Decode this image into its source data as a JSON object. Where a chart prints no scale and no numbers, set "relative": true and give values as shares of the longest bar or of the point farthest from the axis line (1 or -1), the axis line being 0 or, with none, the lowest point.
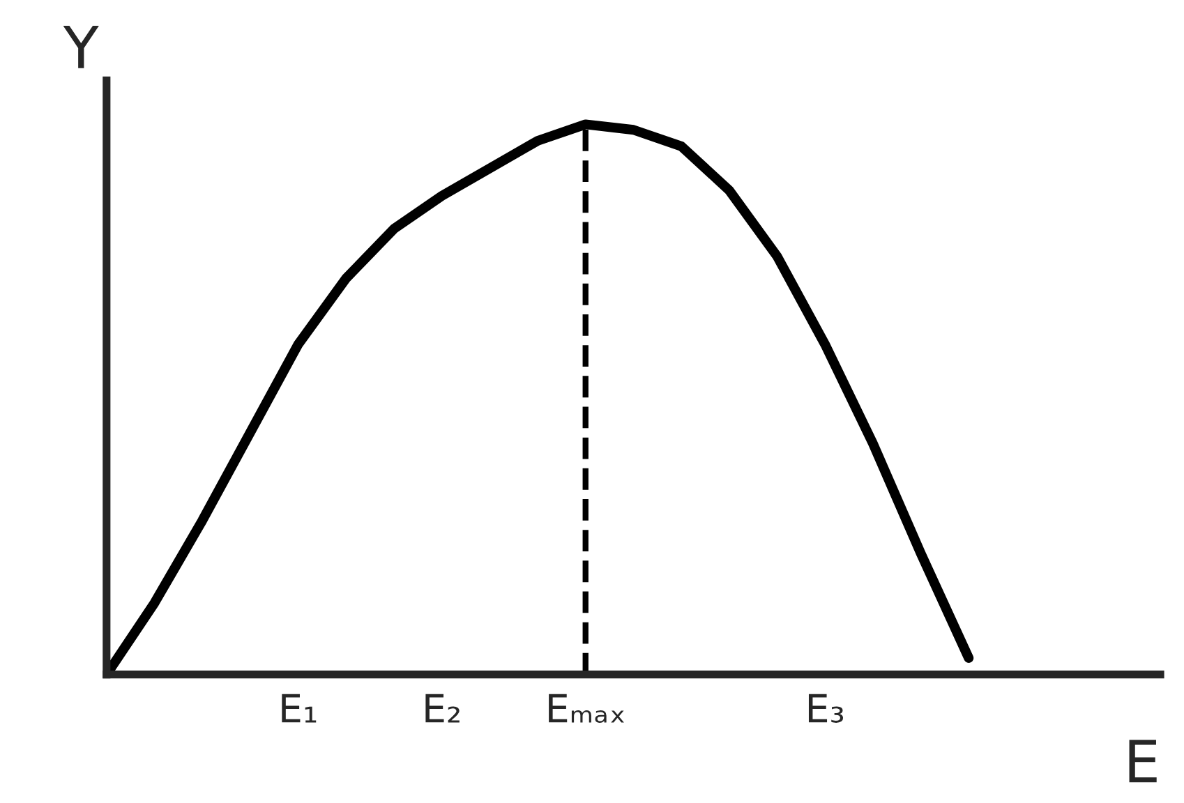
{
  "chart_data": {
    "type": "line",
    "xlabel": "E",
    "ylabel": "Y",
    "relative": true,
    "categories": [
      null,
      null,
      null,
      null,
      "E₁",
      null,
      null,
      "E₂",
      null,
      null,
      "Eₘₐₓ",
      null,
      null,
      null,
      null,
      "E₃",
      null,
      null,
      null,
      null,
      null,
      null,
      null
    ],
    "series": [
      {
        "color": "#000000",
        "values": [
          0,
          0.13,
          0.28,
          0.44,
          0.6,
          0.72,
          0.81,
          0.87,
          0.92,
          0.97,
          1,
          0.99,
          0.96,
          0.88,
          0.76,
          0.6,
          0.42,
          0.22,
          0.03,
          null,
          null,
          null,
          null
        ]
      }
    ],
    "ref_lines": [
      {
        "axis": "x",
        "value": "Eₘₐₓ",
        "line_style": "dashed",
        "color": "#000000"
      }
    ],
    "tick_labels": "x",
    "grid": false,
    "legend": false,
    "marker": "none",
    "line_style": "solid"
  }
}
